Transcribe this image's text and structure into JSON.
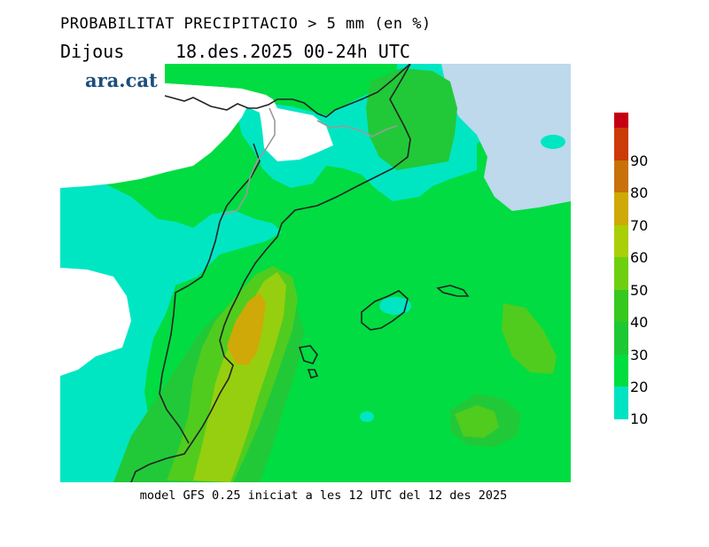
{
  "header": {
    "title": "PROBABILITAT PRECIPITACIO > 5 mm (en %)",
    "day": "Dijous",
    "date_range": "18.des.2025 00-24h UTC"
  },
  "logo": {
    "text": "ara.cat"
  },
  "caption": "model GFS 0.25 iniciat a les 12 UTC del 12 des 2025",
  "legend": {
    "bins": [
      {
        "label": "",
        "color": "#c40012"
      },
      {
        "label": "90",
        "color": "#cc3a07"
      },
      {
        "label": "80",
        "color": "#c8710a"
      },
      {
        "label": "70",
        "color": "#cfa907"
      },
      {
        "label": "60",
        "color": "#a9cf07"
      },
      {
        "label": "50",
        "color": "#6ecf10"
      },
      {
        "label": "40",
        "color": "#36c81f"
      },
      {
        "label": "30",
        "color": "#1ec832"
      },
      {
        "label": "20",
        "color": "#00dd3e"
      },
      {
        "label": "10",
        "color": "#00e3c3"
      }
    ]
  },
  "map_colors": {
    "c10": "#00e6c3",
    "c20": "#00dc41",
    "c30": "#21c938",
    "c40": "#50cc1e",
    "c50": "#96cf0f",
    "c60": "#c8b409",
    "c70": "#caa00a",
    "no_data": "#bdd9eb",
    "coast": "#222222",
    "border": "#9a9a9a"
  }
}
